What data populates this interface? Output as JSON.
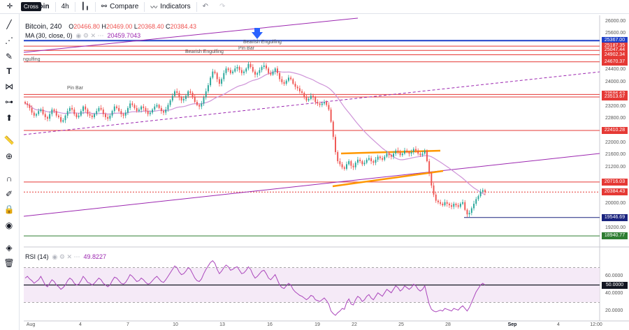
{
  "toolbar": {
    "tooltip": "Cross",
    "symbol_partial": "coin",
    "interval": "4h",
    "compare_label": "Compare",
    "indicators_label": "Indicators"
  },
  "legend": {
    "title": "Bitcoin, 240",
    "o_label": "O",
    "o_value": "20466.80",
    "h_label": "H",
    "h_value": "20469.00",
    "l_label": "L",
    "l_value": "20368.40",
    "c_label": "C",
    "c_value": "20384.43",
    "ma_label": "MA (30, close, 0)",
    "ma_value": "20459.7043",
    "rsi_label": "RSI (14)",
    "rsi_value": "49.8227"
  },
  "annotations": {
    "engulf_left": "ngulfing",
    "pin_bar_left": "Pin Bar",
    "bearish_engulf_1": "Bearish Engulfing",
    "pin_bar_2": "Pin Bar",
    "bearish_engulf_2": "Bearish Engulfing"
  },
  "colors": {
    "up": "#26a69a",
    "down": "#ef5350",
    "ma": "#ce93d8",
    "trend": "#9c27b0",
    "support": "#e53935",
    "orange": "#ff9800",
    "blue": "#1e40c8",
    "green": "#2e7d32"
  },
  "chart_data": {
    "type": "candlestick",
    "price_axis": [
      "26000.00",
      "25600.00",
      "24400.00",
      "24000.00",
      "23200.00",
      "22800.00",
      "22000.00",
      "21600.00",
      "21200.00",
      "20000.00",
      "19200.00"
    ],
    "date_axis": [
      "Aug",
      "4",
      "7",
      "10",
      "13",
      "16",
      "19",
      "22",
      "25",
      "28",
      "Sep",
      "4",
      "12:00"
    ],
    "ylim": [
      18600,
      26200
    ],
    "levels": [
      {
        "price": 25367.0,
        "label": "25367.00",
        "kind": "blue"
      },
      {
        "price": 25187.35,
        "label": "25187.35",
        "kind": "red"
      },
      {
        "price": 25047.44,
        "label": "25047.44",
        "kind": "red"
      },
      {
        "price": 24902.34,
        "label": "24902.34",
        "kind": "red"
      },
      {
        "price": 24670.37,
        "label": "24670.37",
        "kind": "red"
      },
      {
        "price": 23596.63,
        "label": "23596.63",
        "kind": "red"
      },
      {
        "price": 23513.67,
        "label": "23513.67",
        "kind": "red"
      },
      {
        "price": 22410.28,
        "label": "22410.28",
        "kind": "red"
      },
      {
        "price": 20716.03,
        "label": "20716.03",
        "kind": "red"
      },
      {
        "price": 20384.43,
        "label": "20384.43",
        "kind": "current"
      },
      {
        "price": 19546.69,
        "label": "19546.69",
        "kind": "navy"
      },
      {
        "price": 18940.77,
        "label": "18940.77",
        "kind": "green"
      }
    ],
    "closes": [
      23300,
      23250,
      23150,
      23000,
      22900,
      22950,
      23050,
      23100,
      22950,
      22850,
      22800,
      22950,
      23100,
      23050,
      22900,
      22850,
      22700,
      22750,
      22900,
      23050,
      23150,
      23100,
      22950,
      22850,
      22900,
      23050,
      23200,
      23100,
      22950,
      22900,
      22850,
      22950,
      23050,
      23150,
      23100,
      22950,
      22850,
      22800,
      22900,
      23050,
      23200,
      23150,
      23050,
      22950,
      22900,
      23000,
      23150,
      23300,
      23250,
      23150,
      23050,
      23100,
      23200,
      23150,
      23050,
      22950,
      23000,
      23100,
      23200,
      23250,
      23150,
      23050,
      23000,
      23100,
      23250,
      23400,
      23550,
      23700,
      23650,
      23500,
      23400,
      23450,
      23550,
      23700,
      23650,
      23500,
      23350,
      23250,
      23200,
      23300,
      23500,
      23700,
      23900,
      24150,
      24350,
      24300,
      24100,
      23950,
      24100,
      24300,
      24450,
      24400,
      24300,
      24350,
      24450,
      24500,
      24400,
      24300,
      24350,
      24450,
      24600,
      24500,
      24350,
      24250,
      24300,
      24400,
      24500,
      24550,
      24450,
      24300,
      24250,
      24350,
      24450,
      24300,
      24100,
      24000,
      23950,
      24050,
      24150,
      24100,
      23950,
      23850,
      23800,
      23700,
      23650,
      23500,
      23400,
      23450,
      23550,
      23500,
      23350,
      23300,
      23250,
      23300,
      23350,
      23250,
      23100,
      22700,
      22200,
      21700,
      21400,
      21300,
      21200,
      21150,
      21300,
      21400,
      21250,
      21200,
      21350,
      21450,
      21400,
      21300,
      21350,
      21450,
      21500,
      21400,
      21350,
      21450,
      21550,
      21500,
      21450,
      21550,
      21650,
      21600,
      21550,
      21650,
      21750,
      21700,
      21600,
      21650,
      21750,
      21700,
      21650,
      21700,
      21800,
      21750,
      21650,
      21600,
      21650,
      21750,
      21400,
      21000,
      20600,
      20300,
      20100,
      20050,
      20000,
      19950,
      20050,
      20000,
      19950,
      19900,
      20000,
      19950,
      19900,
      20000,
      20050,
      19800,
      19650,
      19700,
      19850,
      20000,
      20150,
      20250,
      20400,
      20450,
      20384
    ],
    "ma_series_label": "MA (30, close, 0)",
    "rsi": [
      58,
      60,
      57,
      55,
      52,
      54,
      56,
      60,
      55,
      50,
      48,
      52,
      56,
      54,
      50,
      48,
      45,
      47,
      50,
      55,
      58,
      56,
      52,
      50,
      51,
      55,
      60,
      57,
      53,
      52,
      50,
      52,
      55,
      58,
      56,
      52,
      50,
      48,
      50,
      55,
      59,
      58,
      55,
      52,
      51,
      53,
      57,
      62,
      60,
      57,
      54,
      55,
      58,
      56,
      53,
      51,
      52,
      55,
      58,
      60,
      57,
      54,
      53,
      56,
      60,
      64,
      68,
      72,
      70,
      65,
      62,
      63,
      66,
      70,
      68,
      63,
      58,
      55,
      54,
      57,
      63,
      68,
      72,
      76,
      78,
      75,
      68,
      63,
      66,
      70,
      73,
      71,
      67,
      68,
      70,
      71,
      67,
      63,
      64,
      67,
      71,
      68,
      62,
      58,
      60,
      63,
      66,
      67,
      63,
      58,
      56,
      59,
      62,
      56,
      50,
      47,
      46,
      49,
      52,
      50,
      45,
      42,
      40,
      38,
      37,
      35,
      33,
      35,
      38,
      37,
      33,
      32,
      31,
      33,
      35,
      32,
      28,
      20,
      17,
      15,
      18,
      20,
      23,
      22,
      30,
      34,
      28,
      27,
      33,
      37,
      35,
      31,
      33,
      37,
      39,
      35,
      33,
      37,
      41,
      39,
      37,
      41,
      45,
      43,
      41,
      45,
      49,
      47,
      43,
      45,
      49,
      47,
      45,
      47,
      51,
      49,
      45,
      43,
      45,
      49,
      38,
      28,
      22,
      20,
      19,
      20,
      21,
      20,
      23,
      22,
      21,
      20,
      23,
      22,
      21,
      24,
      26,
      23,
      20,
      24,
      30,
      36,
      42,
      46,
      50,
      52,
      50
    ],
    "rsi_axis": [
      "60.0000",
      "40.0000",
      "20.0000"
    ],
    "rsi_level_label": "50.0000"
  }
}
